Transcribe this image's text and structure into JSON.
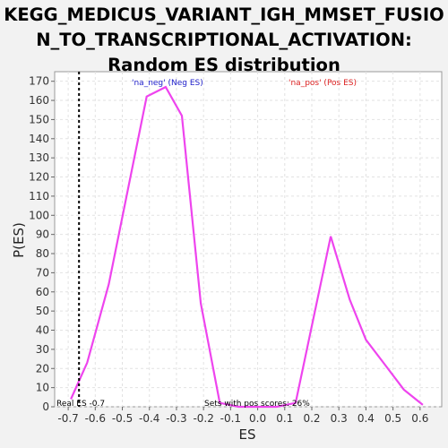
{
  "chart_data": {
    "type": "line",
    "title_lines": [
      "KEGG_MEDICUS_VARIANT_IGH_MMSET_FUSIO",
      "N_TO_TRANSCRIPTIONAL_ACTIVATION:",
      "Random ES distribution"
    ],
    "xlabel": "ES",
    "ylabel": "P(ES)",
    "xlim": [
      -0.75,
      0.68
    ],
    "ylim": [
      0,
      175
    ],
    "x_ticks": [
      -0.7,
      -0.6,
      -0.5,
      -0.4,
      -0.3,
      -0.2,
      -0.1,
      0.0,
      0.1,
      0.2,
      0.3,
      0.4,
      0.5,
      0.6
    ],
    "x_tick_labels": [
      "-0.7",
      "-0.6",
      "-0.5",
      "-0.4",
      "-0.3",
      "-0.2",
      "-0.1",
      "0.0",
      "0.1",
      "0.2",
      "0.3",
      "0.4",
      "0.5",
      "0.6"
    ],
    "y_ticks": [
      0,
      10,
      20,
      30,
      40,
      50,
      60,
      70,
      80,
      90,
      100,
      110,
      120,
      130,
      140,
      150,
      160,
      170
    ],
    "y_tick_labels": [
      "0",
      "10",
      "20",
      "30",
      "40",
      "50",
      "60",
      "70",
      "80",
      "90",
      "100",
      "110",
      "120",
      "130",
      "140",
      "150",
      "160",
      "170"
    ],
    "grid": true,
    "series": [
      {
        "name": "Random ES",
        "color": "#ee44ee",
        "x": [
          -0.69,
          -0.63,
          -0.55,
          -0.41,
          -0.34,
          -0.28,
          -0.21,
          -0.14,
          -0.07,
          0.0,
          0.07,
          0.14,
          0.27,
          0.34,
          0.4,
          0.47,
          0.54,
          0.61
        ],
        "y": [
          4,
          23,
          64,
          162,
          167,
          152,
          54,
          2,
          0,
          0,
          0,
          2,
          89,
          56,
          35,
          22,
          9,
          1
        ]
      }
    ],
    "real_es": -0.66,
    "real_es_color": "#000000",
    "legend": [
      {
        "text": "'na_neg' (Neg ES)",
        "color": "#2222cc"
      },
      {
        "text": "'na_pos' (Pos ES)",
        "color": "#dd2222"
      }
    ],
    "annotations": {
      "real_es_label": "Real ES -0.7",
      "pos_scores_label": "Sets with pos scores: 26%"
    }
  }
}
